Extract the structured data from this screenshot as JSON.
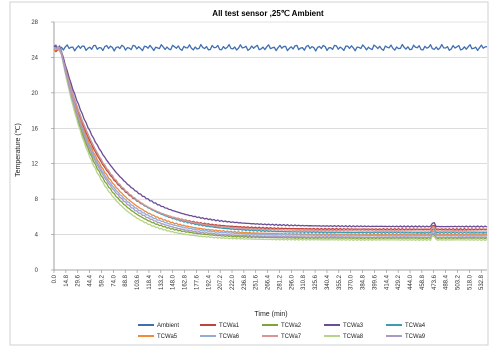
{
  "chart_data": {
    "type": "line",
    "title": "All test sensor ,25℃ Ambient",
    "xlabel": "Time (min)",
    "ylabel": "Temperature (℃)",
    "ylim": [
      0,
      28
    ],
    "yticks": [
      0,
      4,
      8,
      12,
      16,
      20,
      24,
      28
    ],
    "xlim": [
      0,
      540
    ],
    "xticks": [
      "0.0",
      "14.8",
      "29.6",
      "44.4",
      "59.2",
      "74.0",
      "88.8",
      "103.6",
      "118.4",
      "133.2",
      "148.0",
      "162.8",
      "177.6",
      "192.4",
      "207.2",
      "222.0",
      "236.8",
      "251.6",
      "266.4",
      "281.2",
      "296.0",
      "310.8",
      "325.6",
      "340.4",
      "355.2",
      "370.0",
      "384.8",
      "399.6",
      "414.4",
      "429.2",
      "444.0",
      "458.8",
      "473.6",
      "488.4",
      "503.2",
      "518.0",
      "532.8"
    ],
    "grid": "horizontal",
    "legend_position": "bottom",
    "series": [
      {
        "name": "Ambient",
        "color": "#3f6fb0",
        "kind": "ambient",
        "final": 25.1
      },
      {
        "name": "TCWa1",
        "color": "#c0433e",
        "kind": "decay",
        "start": 24.8,
        "final": 4.6,
        "tau": 52
      },
      {
        "name": "TCWa2",
        "color": "#7fa43c",
        "kind": "decay",
        "start": 25.0,
        "final": 3.6,
        "tau": 46
      },
      {
        "name": "TCWa3",
        "color": "#6a4d95",
        "kind": "decay",
        "start": 25.2,
        "final": 4.9,
        "tau": 58
      },
      {
        "name": "TCWa4",
        "color": "#3b9cb6",
        "kind": "decay",
        "start": 25.0,
        "final": 4.2,
        "tau": 55
      },
      {
        "name": "TCWa5",
        "color": "#ee8a3c",
        "kind": "decay",
        "start": 24.9,
        "final": 4.0,
        "tau": 51
      },
      {
        "name": "TCWa6",
        "color": "#91acd8",
        "kind": "decay",
        "start": 25.0,
        "final": 3.9,
        "tau": 49
      },
      {
        "name": "TCWa7",
        "color": "#d79693",
        "kind": "decay",
        "start": 25.0,
        "final": 4.4,
        "tau": 54
      },
      {
        "name": "TCWa8",
        "color": "#b7d389",
        "kind": "decay",
        "start": 25.0,
        "final": 3.4,
        "tau": 44
      },
      {
        "name": "TCWa9",
        "color": "#a99ac4",
        "kind": "decay",
        "start": 25.0,
        "final": 3.7,
        "tau": 48
      }
    ]
  }
}
